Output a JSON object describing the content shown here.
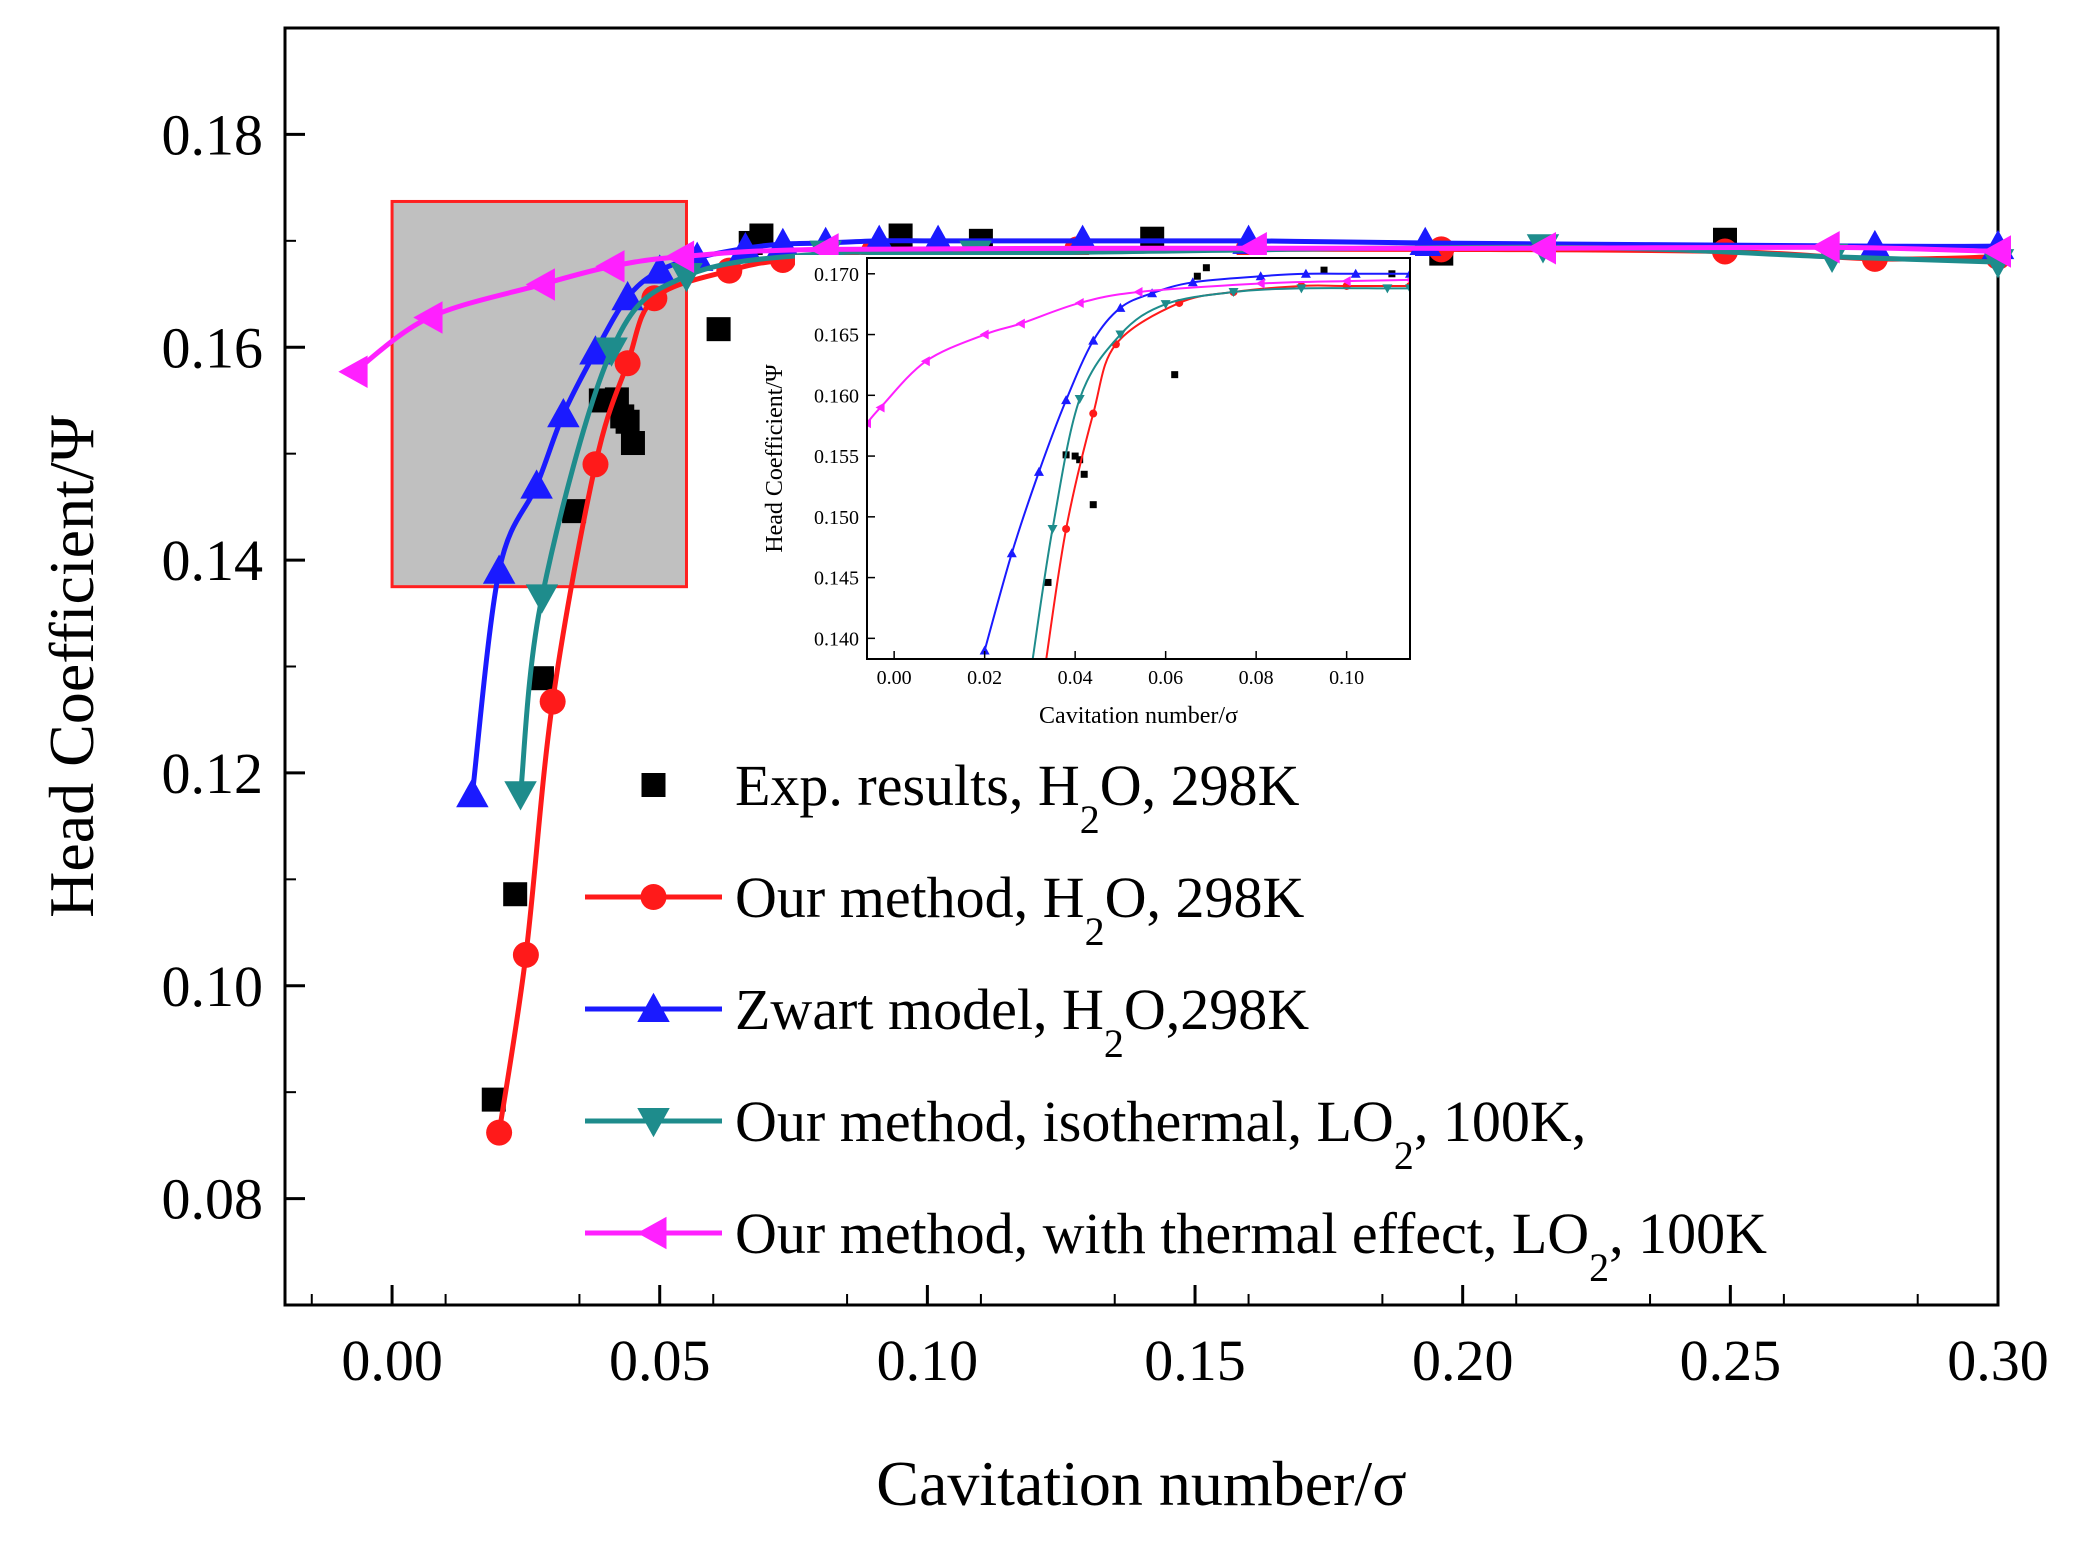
{
  "chart_data": [
    {
      "type": "line",
      "xlabel": "Cavitation number/σ",
      "ylabel": "Head Coefficient/Ψ",
      "xlim": [
        -0.02,
        0.3
      ],
      "ylim": [
        0.07,
        0.19
      ],
      "x_ticks": [
        "0.00",
        "0.05",
        "0.10",
        "0.15",
        "0.20",
        "0.25",
        "0.30"
      ],
      "y_ticks": [
        "0.08",
        "0.10",
        "0.12",
        "0.14",
        "0.16",
        "0.18"
      ],
      "legend_position": "bottom-right",
      "highlight_box": {
        "x_range": [
          0.0,
          0.055
        ],
        "y_range": [
          0.1375,
          0.1737
        ],
        "fill": "#c0c0c0",
        "stroke": "#ff2020"
      },
      "series": [
        {
          "legend_parts": [
            "Exp. results, H",
            "2",
            "O, 298K"
          ],
          "color": "#000000",
          "marker": "square",
          "line": false,
          "x": [
            0.019,
            0.023,
            0.028,
            0.034,
            0.039,
            0.042,
            0.043,
            0.044,
            0.045,
            0.061,
            0.067,
            0.069,
            0.095,
            0.11,
            0.142,
            0.196,
            0.249
          ],
          "y": [
            0.0893,
            0.1086,
            0.1289,
            0.1446,
            0.155,
            0.1551,
            0.1535,
            0.153,
            0.151,
            0.1617,
            0.1698,
            0.1705,
            0.1705,
            0.17,
            0.1702,
            0.1688,
            0.1701
          ]
        },
        {
          "legend_parts": [
            "Our method, H",
            "2",
            "O, 298K"
          ],
          "color": "#ff1a1a",
          "marker": "circle",
          "line": true,
          "x": [
            0.02,
            0.025,
            0.03,
            0.038,
            0.044,
            0.049,
            0.063,
            0.073,
            0.09,
            0.102,
            0.128,
            0.16,
            0.196,
            0.249,
            0.277,
            0.3
          ],
          "y": [
            0.0862,
            0.1029,
            0.1267,
            0.149,
            0.1585,
            0.1646,
            0.1672,
            0.1682,
            0.169,
            0.169,
            0.1692,
            0.1692,
            0.1692,
            0.169,
            0.1683,
            0.1685
          ]
        },
        {
          "legend_parts": [
            "Zwart model, H",
            "2",
            "O,298K"
          ],
          "color": "#1a1aff",
          "marker": "triangle-up",
          "line": true,
          "x": [
            0.015,
            0.02,
            0.027,
            0.032,
            0.038,
            0.044,
            0.05,
            0.057,
            0.066,
            0.073,
            0.081,
            0.091,
            0.102,
            0.129,
            0.16,
            0.193,
            0.277,
            0.3
          ],
          "y": [
            0.118,
            0.139,
            0.147,
            0.1537,
            0.1596,
            0.1647,
            0.1672,
            0.1684,
            0.1693,
            0.1697,
            0.1698,
            0.17,
            0.17,
            0.17,
            0.17,
            0.1698,
            0.1695,
            0.1695
          ]
        },
        {
          "legend_parts": [
            "Our method, isothermal, LO",
            "2",
            ", 100K,"
          ],
          "color": "#1e8c8c",
          "marker": "triangle-down",
          "line": true,
          "x": [
            0.024,
            0.028,
            0.041,
            0.055,
            0.081,
            0.109,
            0.215,
            0.269,
            0.3
          ],
          "y": [
            0.118,
            0.1365,
            0.1597,
            0.1667,
            0.1688,
            0.1688,
            0.1694,
            0.1685,
            0.168
          ]
        },
        {
          "legend_parts": [
            "Our method, with thermal effect, LO",
            "2",
            ", 100K"
          ],
          "color": "#ff20ff",
          "marker": "triangle-left",
          "line": true,
          "x": [
            -0.007,
            0.007,
            0.028,
            0.041,
            0.054,
            0.081,
            0.161,
            0.215,
            0.268,
            0.3
          ],
          "y": [
            0.1577,
            0.1628,
            0.1659,
            0.1676,
            0.1685,
            0.1692,
            0.1693,
            0.1693,
            0.1694,
            0.169
          ]
        }
      ]
    },
    {
      "type": "line",
      "role": "inset",
      "xlabel": "Cavitation number/σ",
      "ylabel": "Head Coefficient/Ψ",
      "xlim": [
        -0.006,
        0.114
      ],
      "ylim": [
        0.1383,
        0.1713
      ],
      "x_ticks": [
        "0.00",
        "0.02",
        "0.04",
        "0.06",
        "0.08",
        "0.10"
      ],
      "y_ticks": [
        "0.140",
        "0.145",
        "0.150",
        "0.155",
        "0.160",
        "0.165",
        "0.170"
      ],
      "series": [
        {
          "color": "#000000",
          "marker": "square",
          "line": false,
          "x": [
            0.034,
            0.038,
            0.04,
            0.041,
            0.042,
            0.044,
            0.062,
            0.067,
            0.069,
            0.095,
            0.11
          ],
          "y": [
            0.1446,
            0.1551,
            0.155,
            0.1547,
            0.1535,
            0.151,
            0.1617,
            0.1698,
            0.1705,
            0.1703,
            0.17
          ]
        },
        {
          "color": "#ff1a1a",
          "marker": "circle",
          "line": true,
          "x": [
            0.0335,
            0.038,
            0.044,
            0.049,
            0.063,
            0.075,
            0.09,
            0.1,
            0.114
          ],
          "y": [
            0.138,
            0.149,
            0.1585,
            0.1642,
            0.1676,
            0.1685,
            0.169,
            0.169,
            0.169
          ]
        },
        {
          "color": "#1a1aff",
          "marker": "triangle-up",
          "line": true,
          "x": [
            0.02,
            0.026,
            0.032,
            0.038,
            0.044,
            0.05,
            0.057,
            0.066,
            0.081,
            0.091,
            0.102,
            0.114
          ],
          "y": [
            0.139,
            0.147,
            0.1537,
            0.1596,
            0.1645,
            0.1672,
            0.1684,
            0.1693,
            0.1698,
            0.17,
            0.17,
            0.17
          ]
        },
        {
          "color": "#1e8c8c",
          "marker": "triangle-down",
          "line": true,
          "x": [
            0.0305,
            0.035,
            0.041,
            0.05,
            0.06,
            0.075,
            0.09,
            0.109,
            0.114
          ],
          "y": [
            0.138,
            0.149,
            0.1597,
            0.165,
            0.1675,
            0.1685,
            0.1688,
            0.1688,
            0.1688
          ]
        },
        {
          "color": "#ff20ff",
          "marker": "triangle-left",
          "line": true,
          "x": [
            -0.006,
            -0.003,
            0.007,
            0.02,
            0.028,
            0.041,
            0.054,
            0.081,
            0.1,
            0.114
          ],
          "y": [
            0.1577,
            0.159,
            0.1628,
            0.165,
            0.1659,
            0.1676,
            0.1685,
            0.1692,
            0.1694,
            0.1695
          ]
        }
      ]
    }
  ]
}
